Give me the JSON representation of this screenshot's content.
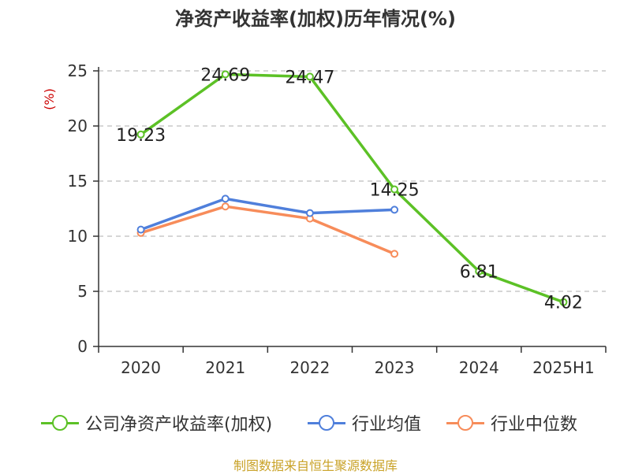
{
  "chart_data": {
    "type": "line",
    "title": "净资产收益率(加权)历年情况(%)",
    "ylabel": "(%)",
    "xlabel": "",
    "categories": [
      "2020",
      "2021",
      "2022",
      "2023",
      "2024",
      "2025H1"
    ],
    "ylim": [
      0,
      25
    ],
    "yticks": [
      0,
      5,
      10,
      15,
      20,
      25
    ],
    "grid": true,
    "legend": "bottom",
    "series": [
      {
        "name": "公司净资产收益率(加权)",
        "color": "#5cc126",
        "values": [
          19.23,
          24.69,
          24.47,
          14.25,
          6.81,
          4.02
        ],
        "labels": [
          "19.23",
          "24.69",
          "24.47",
          "14.25",
          "6.81",
          "4.02"
        ]
      },
      {
        "name": "行业均值",
        "color": "#4f7fdb",
        "values": [
          10.6,
          13.4,
          12.1,
          12.4,
          null,
          null
        ]
      },
      {
        "name": "行业中位数",
        "color": "#f78c5a",
        "values": [
          10.3,
          12.7,
          11.6,
          8.4,
          null,
          null
        ]
      }
    ]
  },
  "source": "制图数据来自恒生聚源数据库"
}
